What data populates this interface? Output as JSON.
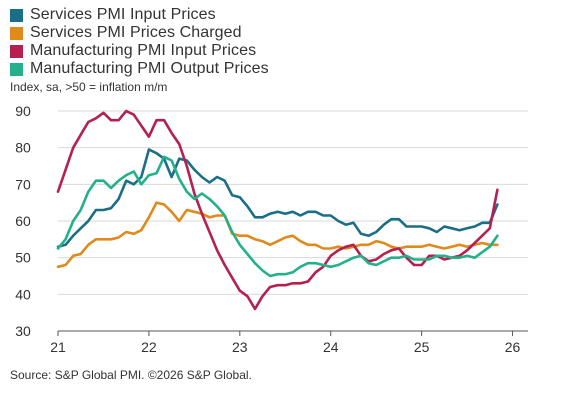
{
  "legend": [
    {
      "label": "Services PMI Input Prices",
      "color": "#1a6f86"
    },
    {
      "label": "Services PMI Prices Charged",
      "color": "#e08a1e"
    },
    {
      "label": "Manufacturing PMI Input Prices",
      "color": "#b5204f"
    },
    {
      "label": "Manufacturing PMI Output Prices",
      "color": "#24b08a"
    }
  ],
  "subtitle": "Index, sa, >50 = inflation m/m",
  "source": "Source: S&P Global PMI. ©2026 S&P Global.",
  "chart_data": {
    "type": "line",
    "x_tick_labels": [
      "21",
      "22",
      "23",
      "24",
      "25",
      "26"
    ],
    "y_tick_labels": [
      "30",
      "40",
      "50",
      "60",
      "70",
      "80",
      "90"
    ],
    "xlim": [
      2021.0,
      2026.17
    ],
    "ylim": [
      30,
      90
    ],
    "grid": "horizontal",
    "legend_position": "top-left",
    "series": [
      {
        "name": "Services PMI Input Prices",
        "color": "#1a6f86",
        "start": 2021.0,
        "step_months": 1,
        "values": [
          53,
          53.5,
          56,
          58,
          60,
          63,
          63,
          63.5,
          66,
          71,
          70,
          72,
          79.5,
          78.5,
          77,
          72,
          77,
          76.5,
          74,
          72,
          70.5,
          72,
          71,
          67,
          66.5,
          64,
          61,
          61,
          62,
          62.5,
          62,
          62.5,
          61.5,
          62.5,
          62.5,
          61.5,
          61.5,
          60,
          59,
          59.5,
          56.5,
          56,
          57,
          59,
          60.5,
          60.5,
          58.5,
          58.5,
          58.5,
          58,
          57,
          58.5,
          58,
          57.5,
          58,
          58.5,
          59.5,
          59.5,
          64.5
        ]
      },
      {
        "name": "Services PMI Prices Charged",
        "color": "#e08a1e",
        "start": 2021.0,
        "step_months": 1,
        "values": [
          47.5,
          48,
          50.5,
          51,
          53.5,
          55,
          55,
          55,
          55.5,
          57,
          56.5,
          57.5,
          61,
          65,
          64.5,
          62.5,
          60,
          63,
          62.5,
          62,
          61,
          61.5,
          61.5,
          56.5,
          56,
          56,
          55,
          54.5,
          53.5,
          54.5,
          55.5,
          56,
          54.5,
          53.5,
          53.5,
          52.5,
          52.5,
          53,
          52.5,
          53,
          53.5,
          53.5,
          54.5,
          54,
          53,
          52.5,
          53,
          53,
          53,
          53.5,
          53,
          52.5,
          53,
          53.5,
          53,
          53.5,
          54,
          53.5,
          53.5
        ]
      },
      {
        "name": "Manufacturing PMI Input Prices",
        "color": "#b5204f",
        "start": 2021.0,
        "step_months": 1,
        "values": [
          68,
          74,
          80,
          83.5,
          87,
          88,
          89.5,
          87.5,
          87.5,
          90,
          89,
          86,
          83,
          87.5,
          87.5,
          84,
          81,
          75,
          67.5,
          62,
          57,
          52,
          48,
          44.5,
          41,
          39.5,
          36,
          39.5,
          42,
          42.5,
          42.5,
          43,
          43,
          43.5,
          46,
          47.5,
          50.5,
          52,
          53,
          53.5,
          50.5,
          49,
          49.5,
          51,
          52,
          52.5,
          50,
          48,
          48,
          50.5,
          50.5,
          49.5,
          50,
          50.5,
          52,
          54,
          56,
          58,
          68.5
        ]
      },
      {
        "name": "Manufacturing PMI Output Prices",
        "color": "#24b08a",
        "start": 2021.0,
        "step_months": 1,
        "values": [
          52.5,
          55,
          60,
          63,
          68,
          71,
          71,
          69,
          71,
          72.5,
          73.5,
          70,
          72.5,
          73,
          77.5,
          76.5,
          71.5,
          68,
          66,
          67.5,
          66,
          64,
          61.5,
          57,
          53.5,
          51,
          48.5,
          46.5,
          45,
          45.5,
          45.5,
          46,
          47.5,
          48.5,
          48.5,
          48,
          47.5,
          48,
          49,
          50,
          50.5,
          48.5,
          48,
          49,
          50,
          50,
          50.5,
          49.5,
          49.5,
          49.5,
          50.5,
          50.5,
          50,
          50,
          50.5,
          50,
          51.5,
          53,
          56
        ]
      }
    ]
  }
}
